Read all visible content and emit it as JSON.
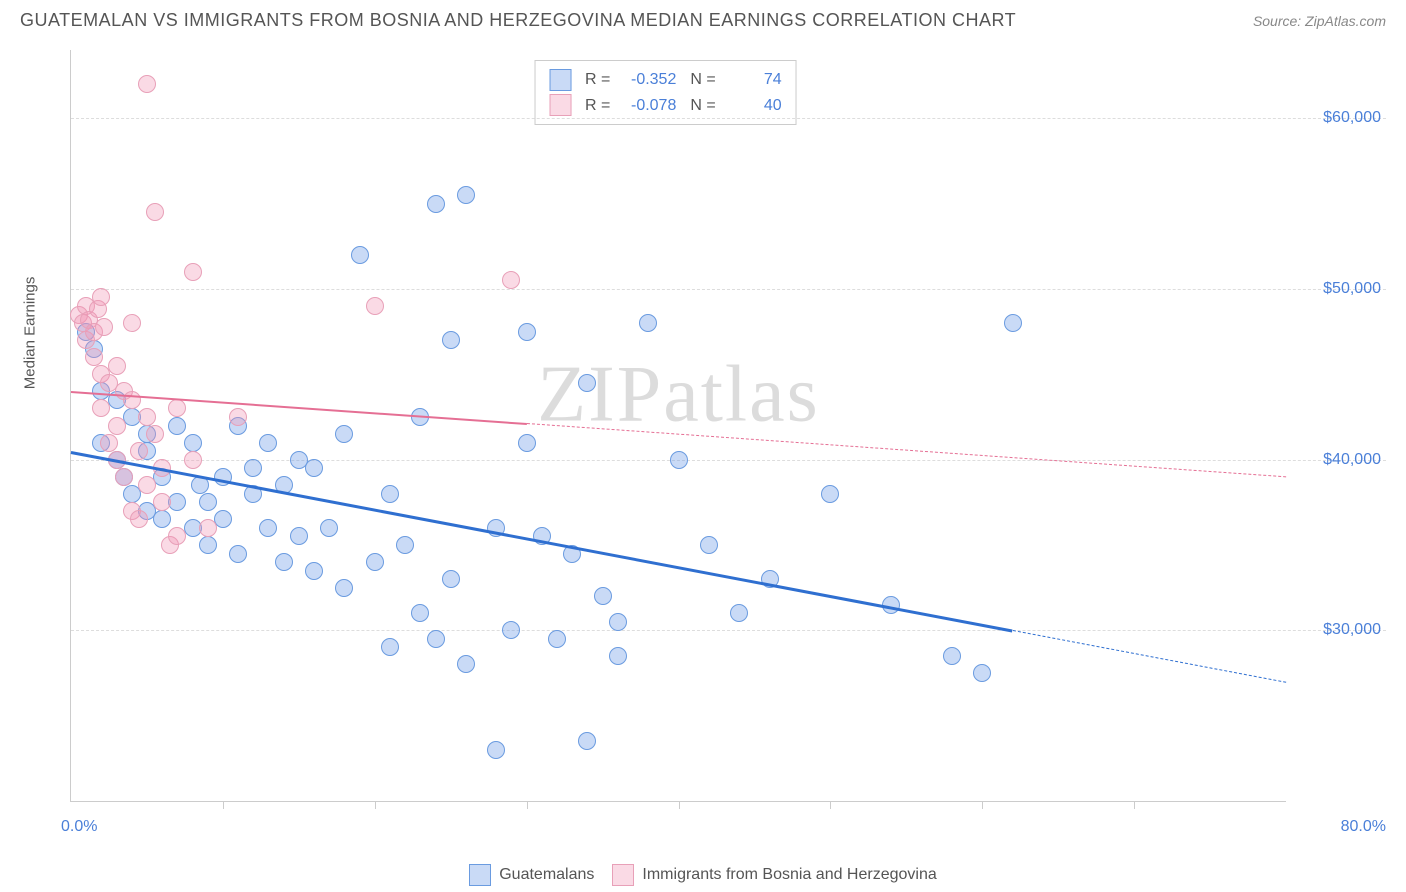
{
  "title": "GUATEMALAN VS IMMIGRANTS FROM BOSNIA AND HERZEGOVINA MEDIAN EARNINGS CORRELATION CHART",
  "source": "Source: ZipAtlas.com",
  "watermark": "ZIPatlas",
  "chart": {
    "type": "scatter",
    "background_color": "#ffffff",
    "grid_color": "#dddddd",
    "axis_color": "#cccccc",
    "y_axis_label": "Median Earnings",
    "y_label_fontsize": 15,
    "x_range_min_label": "0.0%",
    "x_range_max_label": "80.0%",
    "xlim": [
      0,
      80
    ],
    "ylim": [
      20000,
      64000
    ],
    "y_ticks": [
      30000,
      40000,
      50000,
      60000
    ],
    "y_tick_labels": [
      "$30,000",
      "$40,000",
      "$50,000",
      "$60,000"
    ],
    "x_ticks": [
      10,
      20,
      30,
      40,
      50,
      60,
      70
    ],
    "tick_label_color": "#4a7fd8",
    "tick_label_fontsize": 16,
    "point_radius": 9,
    "point_opacity": 0.55,
    "series": [
      {
        "name": "Guatemalans",
        "color_fill": "rgba(100,150,230,0.35)",
        "color_stroke": "#6a9be0",
        "R": "-0.352",
        "N": "74",
        "trend": {
          "x1": 0,
          "y1": 40500,
          "x2": 80,
          "y2": 27000,
          "solid_until_x": 62,
          "line_color": "#2f6fd0",
          "line_width": 2.5
        },
        "points": [
          [
            1,
            47500
          ],
          [
            1.5,
            46500
          ],
          [
            2,
            44000
          ],
          [
            2,
            41000
          ],
          [
            3,
            43500
          ],
          [
            3,
            40000
          ],
          [
            3.5,
            39000
          ],
          [
            4,
            42500
          ],
          [
            4,
            38000
          ],
          [
            5,
            40500
          ],
          [
            5,
            41500
          ],
          [
            5,
            37000
          ],
          [
            6,
            36500
          ],
          [
            6,
            39000
          ],
          [
            7,
            42000
          ],
          [
            7,
            37500
          ],
          [
            8,
            41000
          ],
          [
            8,
            36000
          ],
          [
            8.5,
            38500
          ],
          [
            9,
            35000
          ],
          [
            9,
            37500
          ],
          [
            10,
            39000
          ],
          [
            10,
            36500
          ],
          [
            11,
            42000
          ],
          [
            11,
            34500
          ],
          [
            12,
            38000
          ],
          [
            12,
            39500
          ],
          [
            13,
            36000
          ],
          [
            13,
            41000
          ],
          [
            14,
            38500
          ],
          [
            14,
            34000
          ],
          [
            15,
            40000
          ],
          [
            15,
            35500
          ],
          [
            16,
            39500
          ],
          [
            16,
            33500
          ],
          [
            17,
            36000
          ],
          [
            18,
            41500
          ],
          [
            18,
            32500
          ],
          [
            19,
            52000
          ],
          [
            20,
            34000
          ],
          [
            21,
            38000
          ],
          [
            21,
            29000
          ],
          [
            22,
            35000
          ],
          [
            23,
            42500
          ],
          [
            23,
            31000
          ],
          [
            24,
            29500
          ],
          [
            24,
            55000
          ],
          [
            25,
            47000
          ],
          [
            25,
            33000
          ],
          [
            26,
            55500
          ],
          [
            26,
            28000
          ],
          [
            28,
            36000
          ],
          [
            28,
            23000
          ],
          [
            29,
            30000
          ],
          [
            30,
            47500
          ],
          [
            30,
            41000
          ],
          [
            31,
            35500
          ],
          [
            32,
            29500
          ],
          [
            33,
            34500
          ],
          [
            34,
            44500
          ],
          [
            34,
            23500
          ],
          [
            35,
            32000
          ],
          [
            36,
            28500
          ],
          [
            36,
            30500
          ],
          [
            38,
            48000
          ],
          [
            40,
            40000
          ],
          [
            42,
            35000
          ],
          [
            44,
            31000
          ],
          [
            46,
            33000
          ],
          [
            50,
            38000
          ],
          [
            54,
            31500
          ],
          [
            58,
            28500
          ],
          [
            60,
            27500
          ],
          [
            62,
            48000
          ]
        ]
      },
      {
        "name": "Immigrants from Bosnia and Herzegovina",
        "color_fill": "rgba(240,150,180,0.35)",
        "color_stroke": "#e8a0b8",
        "R": "-0.078",
        "N": "40",
        "trend": {
          "x1": 0,
          "y1": 44000,
          "x2": 80,
          "y2": 39000,
          "solid_until_x": 30,
          "line_color": "#e56f94",
          "line_width": 2
        },
        "points": [
          [
            0.5,
            48500
          ],
          [
            0.8,
            48000
          ],
          [
            1,
            49000
          ],
          [
            1,
            47000
          ],
          [
            1.2,
            48200
          ],
          [
            1.5,
            47500
          ],
          [
            1.5,
            46000
          ],
          [
            1.8,
            48800
          ],
          [
            2,
            49500
          ],
          [
            2,
            45000
          ],
          [
            2,
            43000
          ],
          [
            2.2,
            47800
          ],
          [
            2.5,
            44500
          ],
          [
            2.5,
            41000
          ],
          [
            3,
            45500
          ],
          [
            3,
            42000
          ],
          [
            3,
            40000
          ],
          [
            3.5,
            44000
          ],
          [
            3.5,
            39000
          ],
          [
            4,
            48000
          ],
          [
            4,
            43500
          ],
          [
            4,
            37000
          ],
          [
            4.5,
            40500
          ],
          [
            4.5,
            36500
          ],
          [
            5,
            62000
          ],
          [
            5,
            42500
          ],
          [
            5,
            38500
          ],
          [
            5.5,
            54500
          ],
          [
            5.5,
            41500
          ],
          [
            6,
            39500
          ],
          [
            6,
            37500
          ],
          [
            6.5,
            35000
          ],
          [
            7,
            43000
          ],
          [
            7,
            35500
          ],
          [
            8,
            51000
          ],
          [
            8,
            40000
          ],
          [
            9,
            36000
          ],
          [
            11,
            42500
          ],
          [
            20,
            49000
          ],
          [
            29,
            50500
          ]
        ]
      }
    ],
    "legend_top": {
      "border_color": "#cccccc",
      "R_label": "R =",
      "N_label": "N ="
    },
    "legend_bottom": {
      "items": [
        "Guatemalans",
        "Immigrants from Bosnia and Herzegovina"
      ]
    }
  }
}
